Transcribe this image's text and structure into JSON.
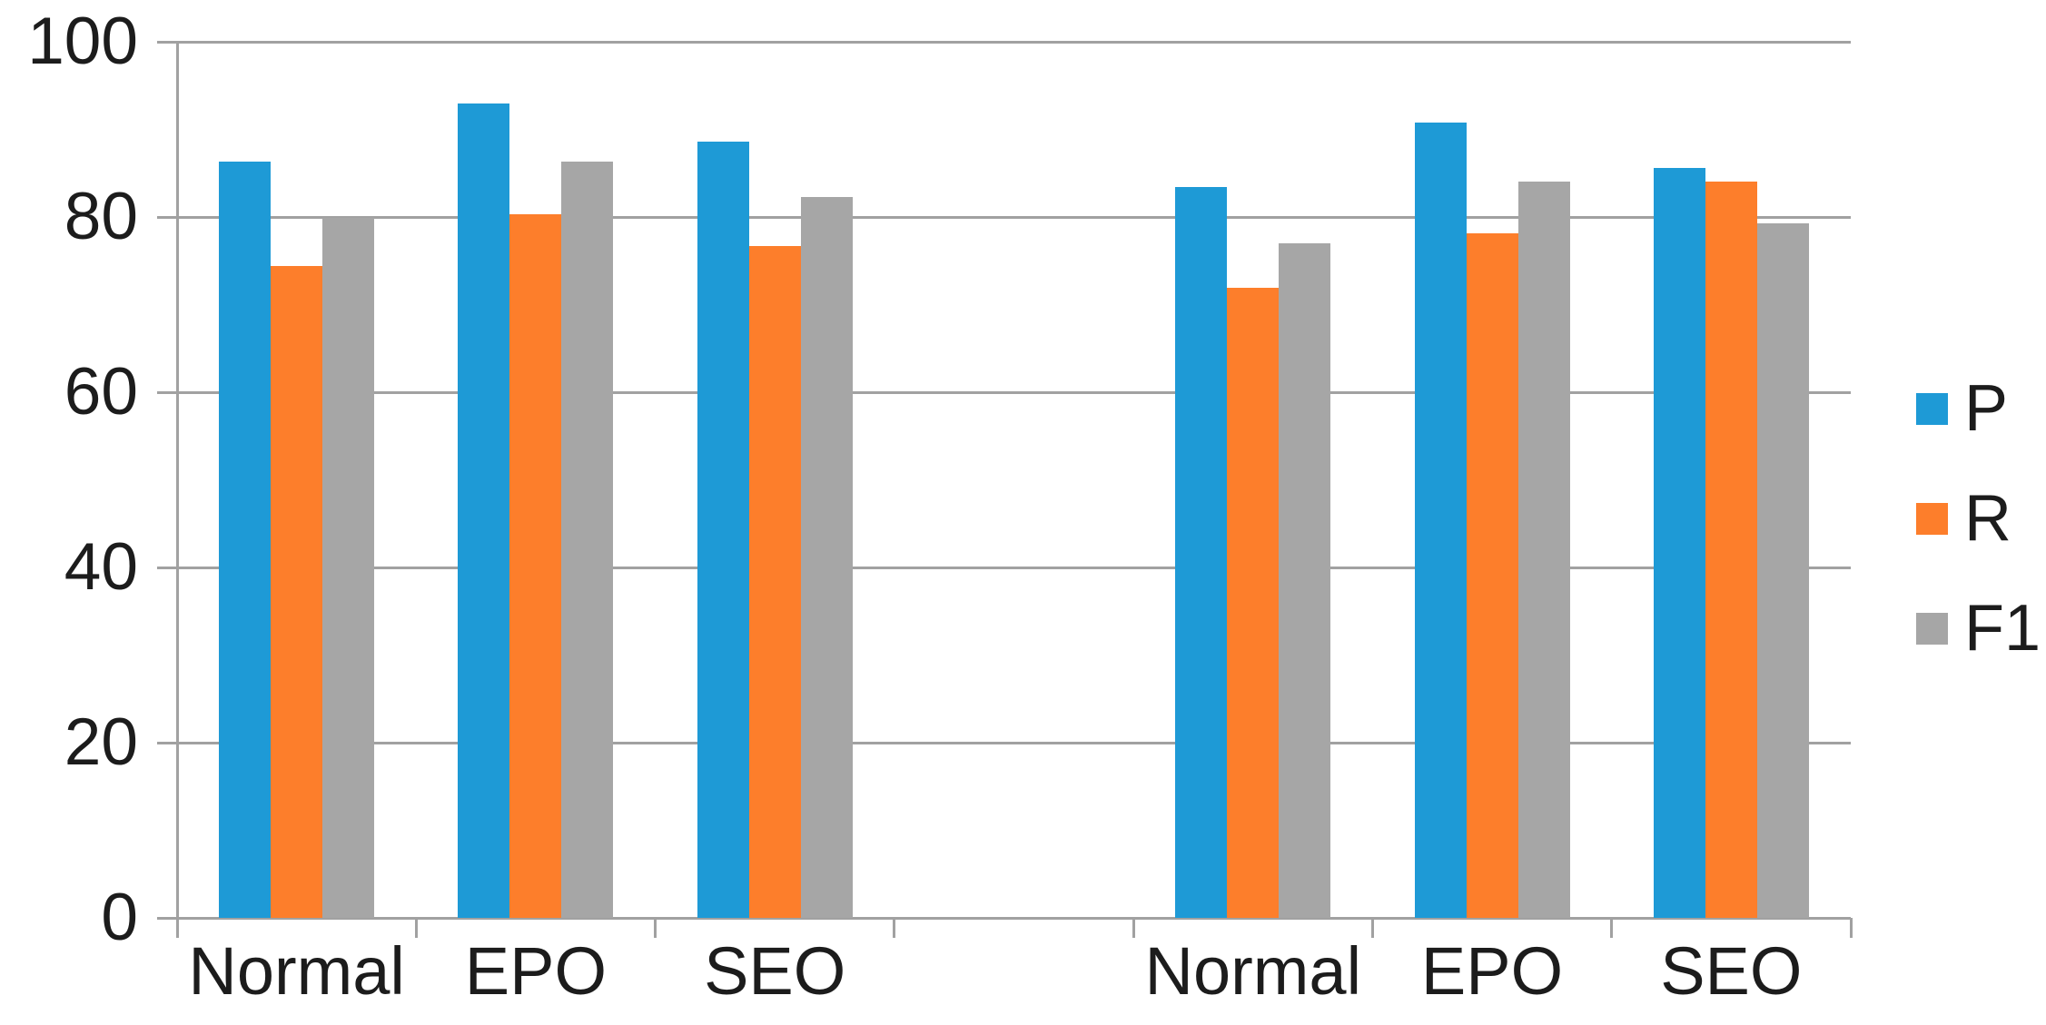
{
  "chart_data": {
    "type": "bar",
    "title": "",
    "xlabel": "",
    "ylabel": "",
    "ylim": [
      0,
      100
    ],
    "yticks": [
      0,
      20,
      40,
      60,
      80,
      100
    ],
    "grid": "horizontal",
    "legend_position": "right",
    "legend": [
      "P",
      "R",
      "F1"
    ],
    "series_colors": {
      "P": "#1e9ad6",
      "R": "#fd7e2b",
      "F1": "#a6a6a6"
    },
    "clusters": [
      {
        "categories": [
          "Normal",
          "EPO",
          "SEO"
        ],
        "series": [
          {
            "name": "P",
            "values": [
              86.3,
              93.0,
              88.6
            ]
          },
          {
            "name": "R",
            "values": [
              74.4,
              80.3,
              76.7
            ]
          },
          {
            "name": "F1",
            "values": [
              79.9,
              86.3,
              82.3
            ]
          }
        ]
      },
      {
        "categories": [
          "Normal",
          "EPO",
          "SEO"
        ],
        "series": [
          {
            "name": "P",
            "values": [
              83.4,
              90.8,
              85.6
            ]
          },
          {
            "name": "R",
            "values": [
              71.9,
              78.1,
              84.0
            ]
          },
          {
            "name": "F1",
            "values": [
              77.0,
              84.0,
              79.3
            ]
          }
        ]
      }
    ]
  },
  "colors": {
    "grid": "#a1a1a1",
    "text": "#1c1c1c",
    "background": "#ffffff"
  }
}
